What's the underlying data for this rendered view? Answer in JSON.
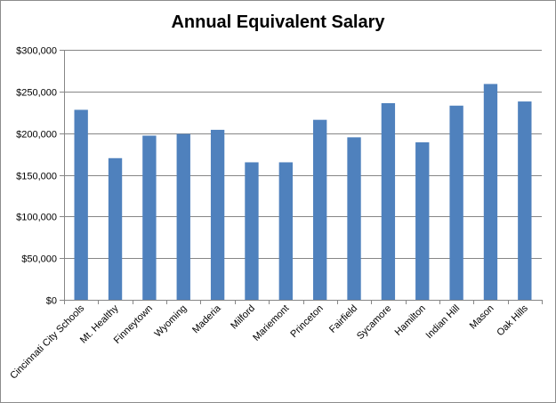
{
  "chart_data": {
    "type": "bar",
    "title": "Annual Equivalent Salary",
    "xlabel": "",
    "ylabel": "",
    "categories": [
      "Cincinnati City Schools",
      "Mt. Healthy",
      "Finneytown",
      "Wyoming",
      "Maderia",
      "Milford",
      "Mariemont",
      "Princeton",
      "Fairfield",
      "Sycamore",
      "Hamilton",
      "Indian Hill",
      "Mason",
      "Oak Hills"
    ],
    "values": [
      228000,
      170000,
      197000,
      199000,
      204000,
      165000,
      165000,
      216000,
      195000,
      236000,
      189000,
      233000,
      259000,
      238000
    ],
    "ylim": [
      0,
      300000
    ],
    "yticks": [
      0,
      50000,
      100000,
      150000,
      200000,
      250000,
      300000
    ],
    "ytick_labels": [
      "$0",
      "$50,000",
      "$100,000",
      "$150,000",
      "$200,000",
      "$250,000",
      "$300,000"
    ],
    "grid": true,
    "legend": "none",
    "bar_color": "#4f81bd",
    "grid_color": "#868686"
  }
}
